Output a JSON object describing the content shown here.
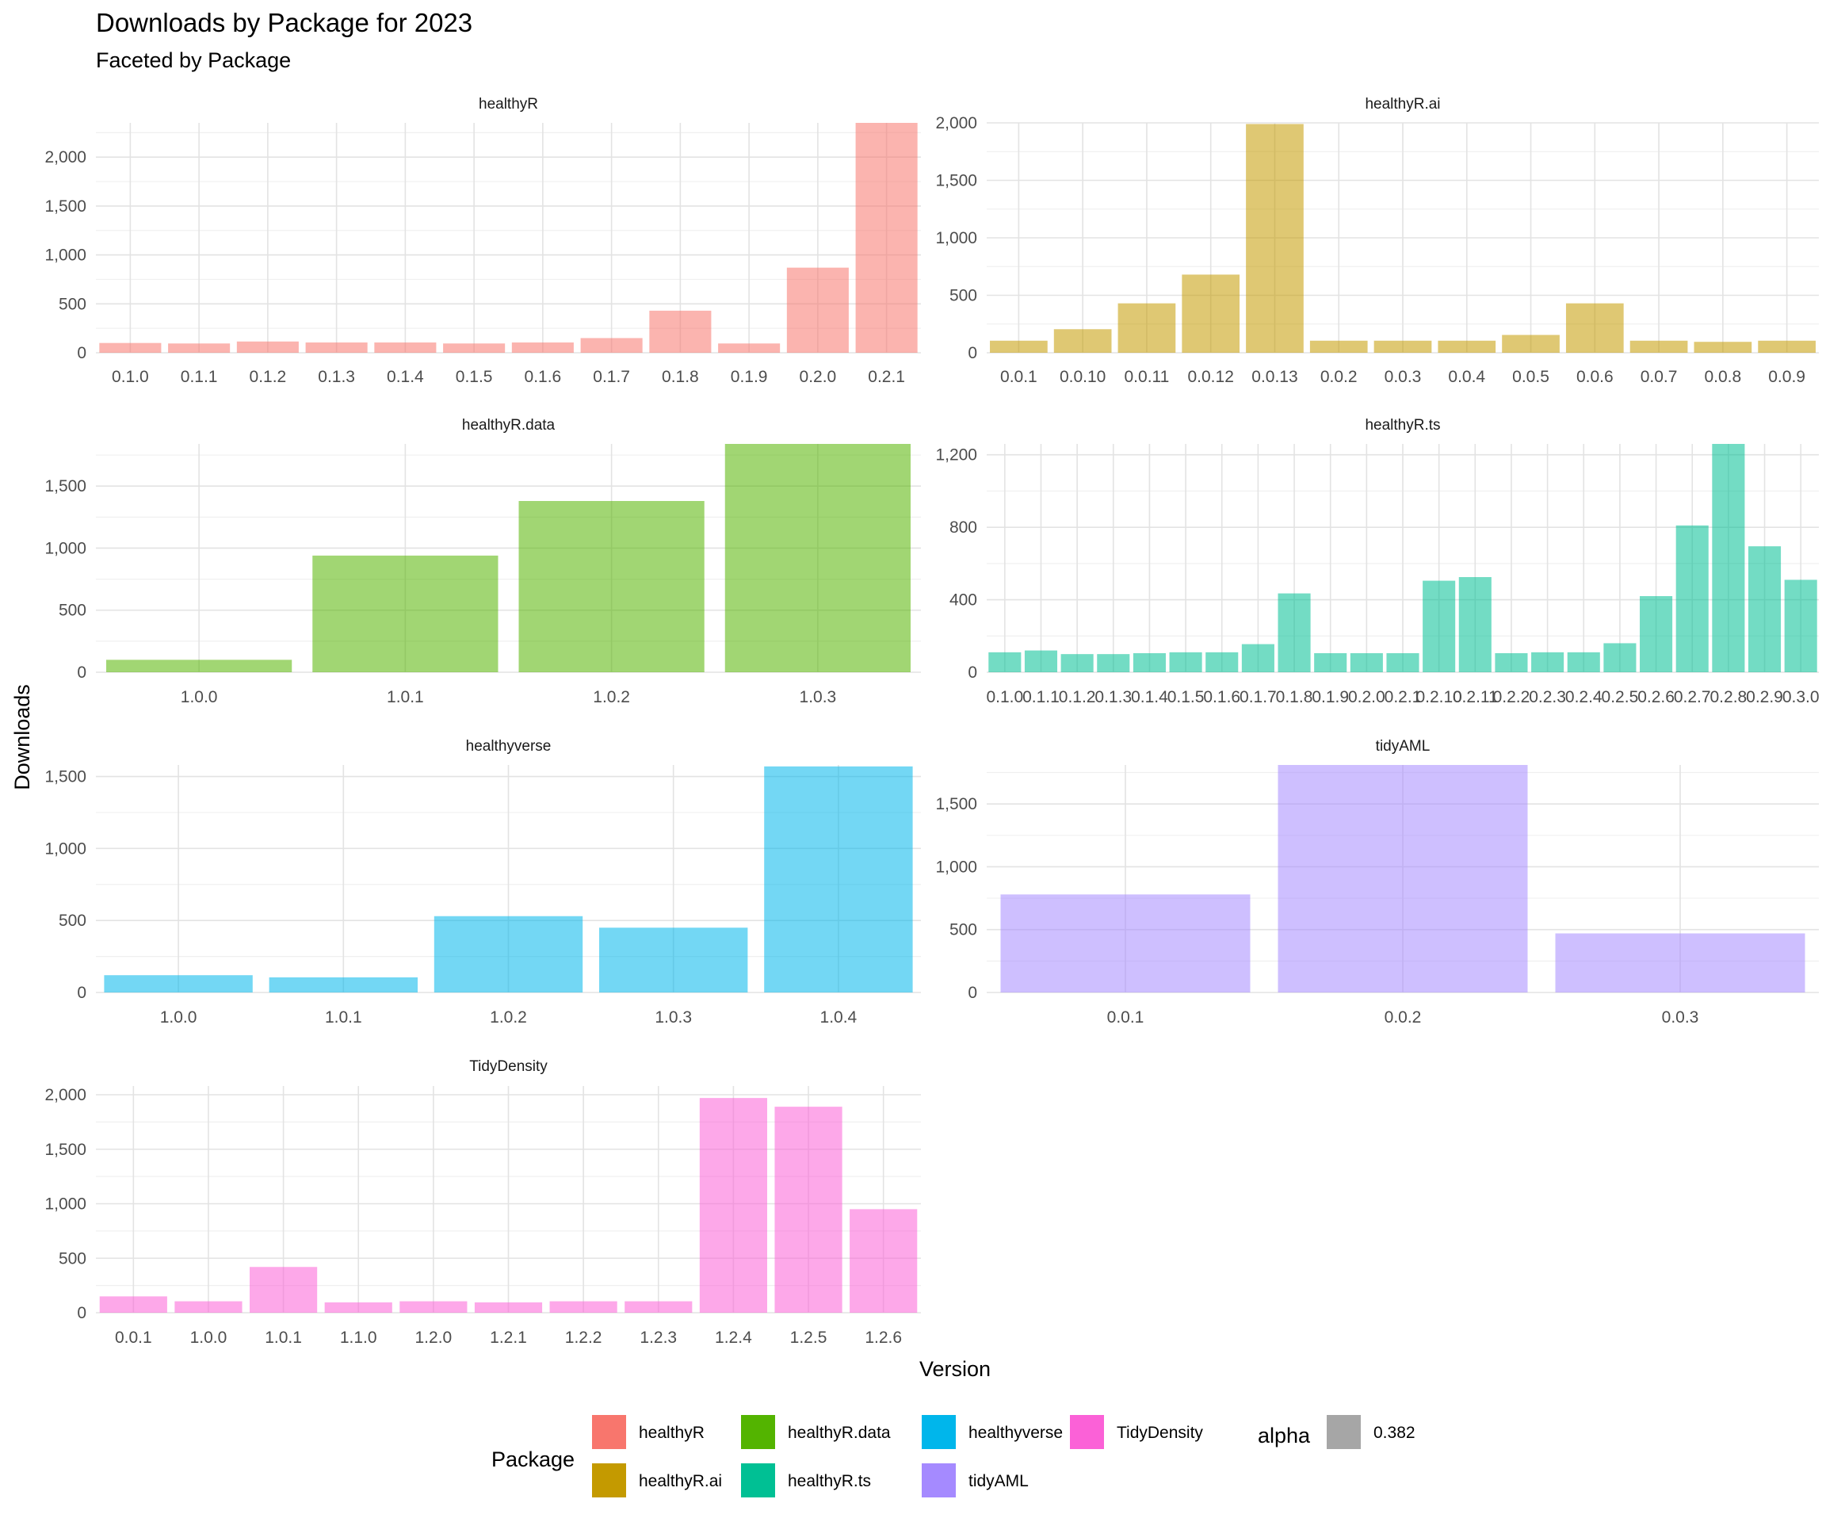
{
  "chart_data": {
    "type": "bar",
    "title": "Downloads by Package for 2023",
    "subtitle": "Faceted by Package",
    "xlabel": "Version",
    "ylabel": "Downloads",
    "grid": true,
    "legend_position": "bottom",
    "facets": [
      {
        "name": "healthyR",
        "color": "#F8766D",
        "categories": [
          "0.1.0",
          "0.1.1",
          "0.1.2",
          "0.1.3",
          "0.1.4",
          "0.1.5",
          "0.1.6",
          "0.1.7",
          "0.1.8",
          "0.1.9",
          "0.2.0",
          "0.2.1"
        ],
        "values": [
          100,
          95,
          115,
          105,
          105,
          95,
          105,
          150,
          430,
          95,
          870,
          2350
        ],
        "ylim": [
          0,
          2350
        ],
        "yticks": [
          0,
          500,
          1000,
          1500,
          2000
        ],
        "ytick_labels": [
          "0",
          "500",
          "1,000",
          "1,500",
          "2,000"
        ]
      },
      {
        "name": "healthyR.ai",
        "color": "#C49A00",
        "categories": [
          "0.0.1",
          "0.0.10",
          "0.0.11",
          "0.0.12",
          "0.0.13",
          "0.0.2",
          "0.0.3",
          "0.0.4",
          "0.0.5",
          "0.0.6",
          "0.0.7",
          "0.0.8",
          "0.0.9"
        ],
        "values": [
          105,
          205,
          430,
          680,
          1990,
          105,
          105,
          105,
          155,
          430,
          105,
          95,
          105
        ],
        "ylim": [
          0,
          2000
        ],
        "yticks": [
          0,
          500,
          1000,
          1500,
          2000
        ],
        "ytick_labels": [
          "0",
          "500",
          "1,000",
          "1,500",
          "2,000"
        ]
      },
      {
        "name": "healthyR.data",
        "color": "#53B400",
        "categories": [
          "1.0.0",
          "1.0.1",
          "1.0.2",
          "1.0.3"
        ],
        "values": [
          100,
          940,
          1380,
          1840
        ],
        "ylim": [
          0,
          1840
        ],
        "yticks": [
          0,
          500,
          1000,
          1500
        ],
        "ytick_labels": [
          "0",
          "500",
          "1,000",
          "1,500"
        ]
      },
      {
        "name": "healthyR.ts",
        "color": "#00C094",
        "categories": [
          "0.1.0",
          "0.1.1",
          "0.1.2",
          "0.1.3",
          "0.1.4",
          "0.1.5",
          "0.1.6",
          "0.1.7",
          "0.1.8",
          "0.1.9",
          "0.2.0",
          "0.2.1",
          "0.2.10",
          "0.2.11",
          "0.2.2",
          "0.2.3",
          "0.2.4",
          "0.2.5",
          "0.2.6",
          "0.2.7",
          "0.2.8",
          "0.2.9",
          "0.3.0"
        ],
        "values": [
          110,
          120,
          100,
          100,
          105,
          110,
          110,
          155,
          435,
          105,
          105,
          105,
          505,
          525,
          105,
          110,
          110,
          160,
          420,
          810,
          1260,
          695,
          510
        ],
        "ylim": [
          0,
          1260
        ],
        "yticks": [
          0,
          400,
          800,
          1200
        ],
        "ytick_labels": [
          "0",
          "400",
          "800",
          "1,200"
        ]
      },
      {
        "name": "healthyverse",
        "color": "#00B6EB",
        "categories": [
          "1.0.0",
          "1.0.1",
          "1.0.2",
          "1.0.3",
          "1.0.4"
        ],
        "values": [
          120,
          105,
          530,
          450,
          1570
        ],
        "ylim": [
          0,
          1580
        ],
        "yticks": [
          0,
          500,
          1000,
          1500
        ],
        "ytick_labels": [
          "0",
          "500",
          "1,000",
          "1,500"
        ]
      },
      {
        "name": "tidyAML",
        "color": "#A58AFF",
        "categories": [
          "0.0.1",
          "0.0.2",
          "0.0.3"
        ],
        "values": [
          780,
          1810,
          470
        ],
        "ylim": [
          0,
          1810
        ],
        "yticks": [
          0,
          500,
          1000,
          1500
        ],
        "ytick_labels": [
          "0",
          "500",
          "1,000",
          "1,500"
        ]
      },
      {
        "name": "TidyDensity",
        "color": "#FB61D7",
        "categories": [
          "0.0.1",
          "1.0.0",
          "1.0.1",
          "1.1.0",
          "1.2.0",
          "1.2.1",
          "1.2.2",
          "1.2.3",
          "1.2.4",
          "1.2.5",
          "1.2.6"
        ],
        "values": [
          150,
          105,
          420,
          95,
          105,
          95,
          105,
          105,
          1970,
          1890,
          950
        ],
        "ylim": [
          0,
          2080
        ],
        "yticks": [
          0,
          500,
          1000,
          1500,
          2000
        ],
        "ytick_labels": [
          "0",
          "500",
          "1,000",
          "1,500",
          "2,000"
        ]
      }
    ],
    "bar_alpha": 0.55,
    "legend": {
      "package_title": "Package",
      "packages": [
        {
          "name": "healthyR",
          "color": "#F8766D"
        },
        {
          "name": "healthyR.ai",
          "color": "#C49A00"
        },
        {
          "name": "healthyR.data",
          "color": "#53B400"
        },
        {
          "name": "healthyR.ts",
          "color": "#00C094"
        },
        {
          "name": "healthyverse",
          "color": "#00B6EB"
        },
        {
          "name": "tidyAML",
          "color": "#A58AFF"
        },
        {
          "name": "TidyDensity",
          "color": "#FB61D7"
        }
      ],
      "alpha_title": "alpha",
      "alpha_value": "0.382",
      "alpha_color": "#A6A6A6"
    }
  }
}
